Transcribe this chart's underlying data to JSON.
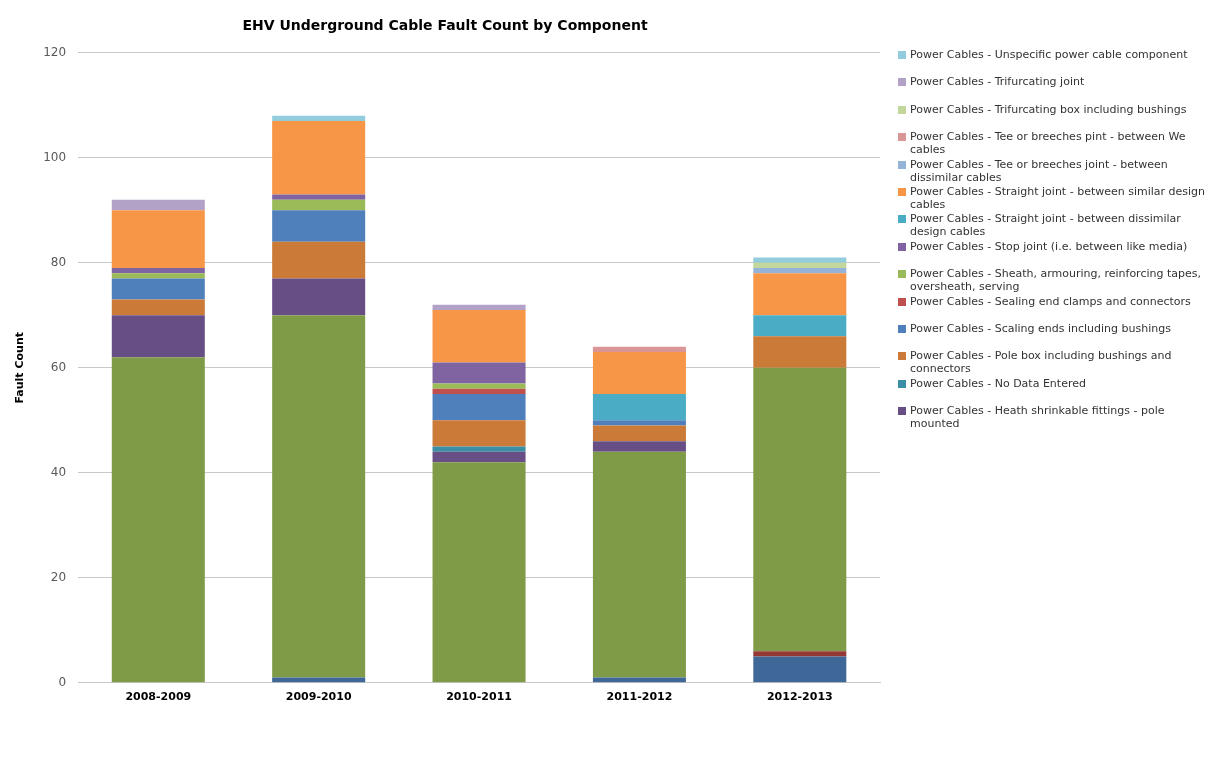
{
  "chart_data": {
    "type": "bar",
    "title": "EHV Underground Cable Fault Count by Component",
    "ylabel": "Fault Count",
    "categories": [
      "2008-2009",
      "2009-2010",
      "2010-2011",
      "2011-2012",
      "2012-2013"
    ],
    "stacked": true,
    "ylim": [
      0,
      120
    ],
    "yticks": [
      0,
      20,
      40,
      60,
      80,
      100,
      120
    ],
    "grid": "y",
    "legend": "right",
    "series": [
      {
        "color": "#3f6797",
        "values": [
          0,
          1,
          0,
          1,
          5
        ]
      },
      {
        "color": "#953735",
        "values": [
          0,
          0,
          0,
          0,
          1
        ]
      },
      {
        "color": "#7f9b48",
        "values": [
          62,
          69,
          42,
          43,
          54
        ]
      },
      {
        "name": "Power Cables - Heath shrinkable fittings - pole mounted",
        "color": "#674f86",
        "values": [
          8,
          7,
          2,
          2,
          0
        ]
      },
      {
        "name": "Power Cables - No Data Entered",
        "color": "#3c8ea5",
        "values": [
          0,
          0,
          1,
          0,
          0
        ]
      },
      {
        "name": "Power Cables - Pole box including bushings and connectors",
        "color": "#cb7a37",
        "values": [
          3,
          7,
          5,
          3,
          6
        ]
      },
      {
        "name": "Power Cables - Scaling ends including bushings",
        "color": "#4f80bc",
        "values": [
          4,
          6,
          5,
          1,
          0
        ]
      },
      {
        "name": "Power Cables - Sealing end clamps and connectors",
        "color": "#c0504d",
        "values": [
          0,
          0,
          1,
          0,
          0
        ]
      },
      {
        "name": "Power Cables - Sheath, armouring, reinforcing tapes, oversheath, serving",
        "color": "#9bbb59",
        "values": [
          1,
          2,
          1,
          0,
          0
        ]
      },
      {
        "name": "Power Cables - Stop joint (i.e. between like media)",
        "color": "#8064a2",
        "values": [
          1,
          1,
          4,
          0,
          0
        ]
      },
      {
        "name": "Power Cables - Straight joint - between dissimilar design cables",
        "color": "#4bacc6",
        "values": [
          0,
          0,
          0,
          5,
          4
        ]
      },
      {
        "name": "Power Cables - Straight joint - between similar design cables",
        "color": "#f79646",
        "values": [
          11,
          14,
          10,
          8,
          8
        ]
      },
      {
        "name": "Power Cables - Tee or breeches joint - between dissimilar cables",
        "color": "#95b3d7",
        "values": [
          0,
          0,
          0,
          0,
          1
        ]
      },
      {
        "name": "Power Cables - Tee or breeches pint - between We cables",
        "color": "#d99694",
        "values": [
          0,
          0,
          0,
          1,
          0
        ]
      },
      {
        "name": "Power Cables - Trifurcating box including bushings",
        "color": "#c3d69b",
        "values": [
          0,
          0,
          0,
          0,
          1
        ]
      },
      {
        "name": "Power Cables - Trifurcating joint",
        "color": "#b3a2c7",
        "values": [
          2,
          0,
          1,
          0,
          0
        ]
      },
      {
        "name": "Power Cables - Unspecific power cable component",
        "color": "#93cddd",
        "values": [
          0,
          1,
          0,
          0,
          1
        ]
      }
    ]
  }
}
